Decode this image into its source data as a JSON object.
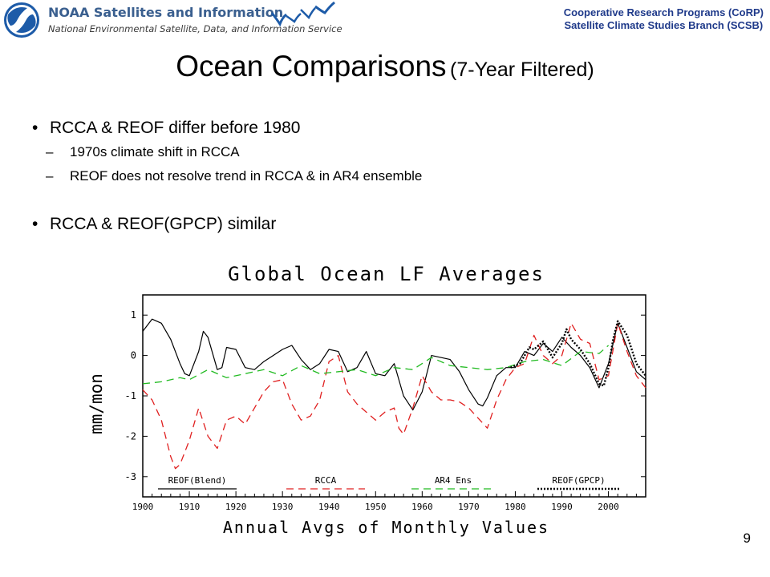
{
  "header": {
    "org_title": "NOAA Satellites and Information",
    "org_subtitle": "National Environmental Satellite, Data, and Information Service",
    "program_line1": "Cooperative Research Programs (CoRP)",
    "program_line2": "Satellite Climate Studies Branch (SCSB)"
  },
  "slide": {
    "title_main": "Ocean Comparisons",
    "title_sub": "(7-Year Filtered)",
    "bullets": [
      {
        "text": "RCCA & REOF differ before 1980",
        "subs": [
          "1970s climate shift in RCCA",
          "REOF does not resolve trend in RCCA & in AR4 ensemble"
        ]
      },
      {
        "text": "RCCA & REOF(GPCP) similar",
        "subs": []
      }
    ],
    "bullet_mark": "•",
    "sub_mark": "–",
    "page_number": "9"
  },
  "colors": {
    "noaa_blue": "#1d5ba8",
    "rcca": "#e02020",
    "ar4": "#22bb22",
    "reof_blend": "#000000",
    "reof_gpcp": "#000000"
  },
  "chart_data": {
    "type": "line",
    "title": "Global Ocean LF Averages",
    "xlabel": "Annual Avgs of Monthly Values",
    "ylabel": "mm/mon",
    "xlim": [
      1900,
      2008
    ],
    "ylim": [
      -3.5,
      1.5
    ],
    "xticks": [
      1900,
      1910,
      1920,
      1930,
      1940,
      1950,
      1960,
      1970,
      1980,
      1990,
      2000
    ],
    "yticks": [
      1,
      0,
      -1,
      -2,
      -3
    ],
    "legend_position": "bottom-inside",
    "series": [
      {
        "name": "REOF(Blend)",
        "color": "#000000",
        "style": "solid",
        "x": [
          1900,
          1902,
          1904,
          1906,
          1908,
          1909,
          1910,
          1912,
          1913,
          1914,
          1916,
          1917,
          1918,
          1920,
          1922,
          1924,
          1926,
          1928,
          1930,
          1932,
          1934,
          1936,
          1938,
          1940,
          1942,
          1944,
          1946,
          1948,
          1950,
          1952,
          1954,
          1956,
          1958,
          1960,
          1962,
          1964,
          1966,
          1968,
          1970,
          1972,
          1973,
          1974,
          1976,
          1978,
          1980,
          1982,
          1984,
          1986,
          1988,
          1990,
          1992,
          1994,
          1996,
          1998,
          2000,
          2002,
          2004,
          2006,
          2008
        ],
        "y": [
          0.6,
          0.9,
          0.8,
          0.4,
          -0.2,
          -0.45,
          -0.5,
          0.1,
          0.6,
          0.45,
          -0.35,
          -0.3,
          0.2,
          0.15,
          -0.3,
          -0.35,
          -0.15,
          0.0,
          0.15,
          0.25,
          -0.1,
          -0.35,
          -0.2,
          0.15,
          0.1,
          -0.4,
          -0.3,
          0.1,
          -0.45,
          -0.5,
          -0.2,
          -1.0,
          -1.35,
          -0.9,
          0.0,
          -0.05,
          -0.1,
          -0.4,
          -0.85,
          -1.2,
          -1.25,
          -1.05,
          -0.5,
          -0.3,
          -0.3,
          0.1,
          0.0,
          0.3,
          0.1,
          0.45,
          0.2,
          0.0,
          -0.3,
          -0.8,
          -0.2,
          0.8,
          0.2,
          -0.4,
          -0.6
        ]
      },
      {
        "name": "RCCA",
        "color": "#e02020",
        "style": "dashed",
        "x": [
          1900,
          1902,
          1904,
          1906,
          1907,
          1908,
          1910,
          1912,
          1914,
          1916,
          1918,
          1920,
          1922,
          1924,
          1926,
          1928,
          1930,
          1932,
          1934,
          1936,
          1938,
          1940,
          1942,
          1944,
          1946,
          1948,
          1950,
          1952,
          1954,
          1955,
          1956,
          1958,
          1960,
          1962,
          1964,
          1966,
          1968,
          1970,
          1972,
          1974,
          1976,
          1978,
          1980,
          1982,
          1984,
          1986,
          1988,
          1990,
          1992,
          1994,
          1996,
          1998,
          2000,
          2002,
          2004,
          2006,
          2008
        ],
        "y": [
          -0.85,
          -1.1,
          -1.6,
          -2.5,
          -2.8,
          -2.7,
          -2.1,
          -1.3,
          -2.0,
          -2.3,
          -1.6,
          -1.5,
          -1.7,
          -1.3,
          -0.9,
          -0.65,
          -0.6,
          -1.2,
          -1.6,
          -1.5,
          -1.1,
          -0.15,
          0.0,
          -0.9,
          -1.2,
          -1.4,
          -1.6,
          -1.4,
          -1.3,
          -1.8,
          -1.95,
          -1.3,
          -0.5,
          -0.9,
          -1.1,
          -1.1,
          -1.15,
          -1.3,
          -1.55,
          -1.8,
          -1.1,
          -0.6,
          -0.3,
          -0.2,
          0.5,
          0.0,
          -0.2,
          0.0,
          0.8,
          0.4,
          0.3,
          -0.6,
          -0.5,
          0.8,
          0.1,
          -0.5,
          -0.8
        ]
      },
      {
        "name": "AR4 Ens",
        "color": "#22bb22",
        "style": "dashed",
        "x": [
          1900,
          1904,
          1908,
          1910,
          1914,
          1918,
          1922,
          1926,
          1930,
          1934,
          1938,
          1942,
          1946,
          1950,
          1954,
          1958,
          1962,
          1966,
          1970,
          1974,
          1978,
          1982,
          1986,
          1990,
          1994,
          1998,
          2000
        ],
        "y": [
          -0.7,
          -0.65,
          -0.55,
          -0.6,
          -0.35,
          -0.55,
          -0.45,
          -0.35,
          -0.5,
          -0.25,
          -0.45,
          -0.4,
          -0.35,
          -0.5,
          -0.3,
          -0.35,
          -0.05,
          -0.25,
          -0.3,
          -0.35,
          -0.3,
          -0.15,
          -0.1,
          -0.25,
          0.1,
          0.05,
          0.25
        ]
      },
      {
        "name": "REOF(GPCP)",
        "color": "#000000",
        "style": "dotted",
        "x": [
          1979,
          1981,
          1983,
          1984,
          1986,
          1988,
          1990,
          1991,
          1992,
          1994,
          1996,
          1998,
          1999,
          2000,
          2001,
          2002,
          2004,
          2006,
          2008
        ],
        "y": [
          -0.3,
          -0.2,
          0.2,
          0.15,
          0.35,
          -0.05,
          0.3,
          0.65,
          0.4,
          0.15,
          -0.2,
          -0.7,
          -0.75,
          -0.3,
          0.4,
          0.85,
          0.5,
          -0.2,
          -0.5
        ]
      }
    ]
  }
}
